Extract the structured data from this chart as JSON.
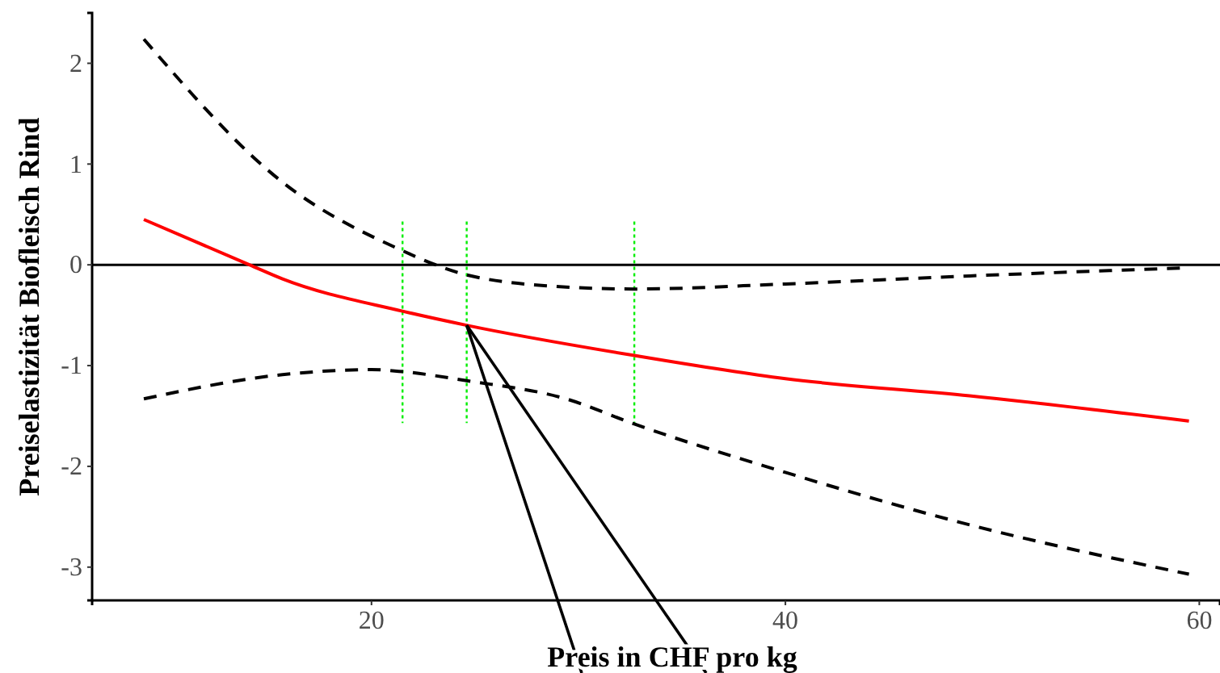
{
  "chart_data": {
    "type": "line",
    "xlabel": "Preis in CHF pro kg",
    "ylabel": "Preiselastizität Biofleisch Rind",
    "xlim": [
      6.5,
      61
    ],
    "ylim": [
      -3.33,
      2.5
    ],
    "xticks": [
      20,
      40,
      60
    ],
    "yticks": [
      -3,
      -2,
      -1,
      0,
      1,
      2
    ],
    "grid": false,
    "series": [
      {
        "color": "#ff0000",
        "line_style": "solid",
        "x": [
          9,
          14.1,
          15.7,
          21.5,
          24.6,
          32.7,
          40,
          48.9,
          59.5
        ],
        "values": [
          0.45,
          0,
          -0.14,
          -0.46,
          -0.6,
          -0.9,
          -1.13,
          -1.3,
          -1.55
        ]
      },
      {
        "color": "#000000",
        "line_style": "dashed",
        "x": [
          9,
          15.7,
          21.5,
          23.1,
          24.6,
          29.4,
          32.7,
          40,
          48.9,
          59.5
        ],
        "values": [
          2.24,
          0.82,
          0.14,
          0,
          -0.1,
          -0.22,
          -0.24,
          -0.19,
          -0.11,
          -0.03
        ]
      },
      {
        "color": "#000000",
        "line_style": "dashed",
        "x": [
          9,
          15.7,
          20,
          21.5,
          24.6,
          29.4,
          32.7,
          40,
          48.9,
          59.5
        ],
        "values": [
          -1.33,
          -1.09,
          -1.04,
          -1.06,
          -1.15,
          -1.33,
          -1.58,
          -2.06,
          -2.58,
          -3.07
        ]
      }
    ],
    "ref_lines": [
      {
        "axis": "y",
        "value": 0,
        "color": "#000000",
        "line_style": "solid"
      },
      {
        "axis": "x",
        "value": 21.5,
        "color": "#00ee00",
        "line_style": "dotted"
      },
      {
        "axis": "x",
        "value": 24.6,
        "color": "#00ee00",
        "line_style": "dotted"
      },
      {
        "axis": "x",
        "value": 32.7,
        "color": "#00ee00",
        "line_style": "dotted"
      }
    ]
  }
}
